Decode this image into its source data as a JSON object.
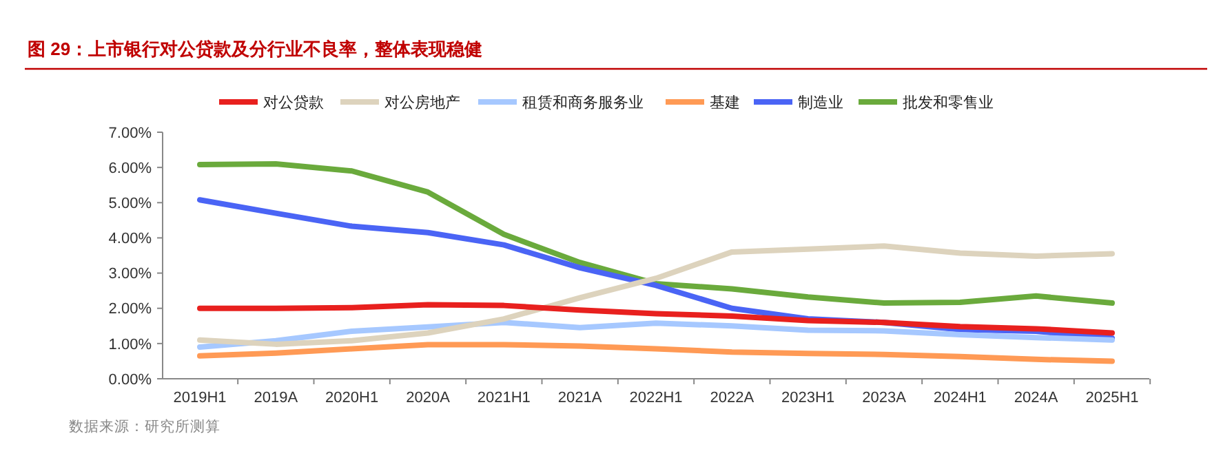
{
  "chart_data": {
    "type": "line",
    "title": "图 29：上市银行对公贷款及分行业不良率，整体表现稳健",
    "categories": [
      "2019H1",
      "2019A",
      "2020H1",
      "2020A",
      "2021H1",
      "2021A",
      "2022H1",
      "2022A",
      "2023H1",
      "2023A",
      "2024H1",
      "2024A",
      "2025H1"
    ],
    "series": [
      {
        "name": "对公贷款",
        "color": "#e8201e",
        "values": [
          2.0,
          2.0,
          2.02,
          2.1,
          2.08,
          1.95,
          1.85,
          1.78,
          1.65,
          1.6,
          1.48,
          1.42,
          1.3
        ]
      },
      {
        "name": "对公房地产",
        "color": "#ddd3bd",
        "values": [
          1.1,
          0.98,
          1.08,
          1.3,
          1.7,
          2.3,
          2.85,
          3.6,
          3.68,
          3.77,
          3.57,
          3.48,
          3.55
        ]
      },
      {
        "name": "租赁和商务服务业",
        "color": "#a6c8ff",
        "values": [
          0.9,
          1.08,
          1.35,
          1.47,
          1.6,
          1.45,
          1.58,
          1.5,
          1.38,
          1.36,
          1.25,
          1.17,
          1.1
        ]
      },
      {
        "name": "基建",
        "color": "#ff9a55",
        "values": [
          0.65,
          0.73,
          0.85,
          0.97,
          0.97,
          0.93,
          0.85,
          0.76,
          0.72,
          0.69,
          0.63,
          0.55,
          0.5
        ]
      },
      {
        "name": "制造业",
        "color": "#4a64f5",
        "values": [
          5.08,
          4.7,
          4.33,
          4.15,
          3.8,
          3.15,
          2.65,
          2.0,
          1.7,
          1.6,
          1.4,
          1.35,
          1.15
        ]
      },
      {
        "name": "批发和零售业",
        "color": "#6aaa3c",
        "values": [
          6.08,
          6.1,
          5.9,
          5.3,
          4.1,
          3.3,
          2.7,
          2.55,
          2.32,
          2.15,
          2.17,
          2.35,
          2.15
        ]
      }
    ],
    "ylim": [
      0,
      7
    ],
    "yticks": [
      {
        "value": 0,
        "label": "0.00%"
      },
      {
        "value": 1,
        "label": "1.00%"
      },
      {
        "value": 2,
        "label": "2.00%"
      },
      {
        "value": 3,
        "label": "3.00%"
      },
      {
        "value": 4,
        "label": "4.00%"
      },
      {
        "value": 5,
        "label": "5.00%"
      },
      {
        "value": 6,
        "label": "6.00%"
      },
      {
        "value": 7,
        "label": "7.00%"
      }
    ],
    "legend": "top",
    "grid": false,
    "marker": "none",
    "line_style": "solid",
    "annotations": [
      "数据来源：研究所测算"
    ]
  }
}
